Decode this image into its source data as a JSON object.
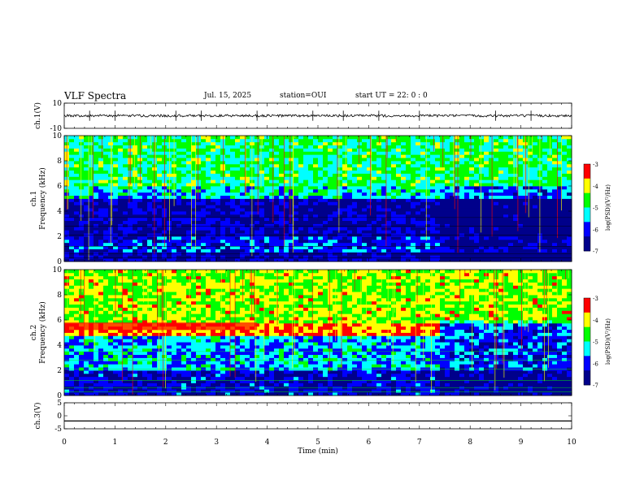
{
  "header": {
    "title": "VLF Spectra",
    "date": "Jul. 15, 2025",
    "station": "station=OUI",
    "start": "start UT =  22: 0  : 0"
  },
  "chart_data": [
    {
      "type": "line",
      "panel": "ch1-waveform",
      "ylabel": "ch.1(V)",
      "ylim": [
        -10,
        10
      ],
      "ytick_labels": [
        "10",
        "-10"
      ],
      "xlim": [
        0,
        10
      ],
      "baseline": 0,
      "noise_amplitude": 1,
      "spikes_min": [
        0.5,
        1.0,
        2.2,
        2.7,
        3.8,
        4.9,
        5.5,
        6.2,
        7.0,
        8.5,
        9.2
      ]
    },
    {
      "type": "heatmap",
      "panel": "ch1-spectrogram",
      "ylabel": "ch.1\nFrequency (kHz)",
      "ylim": [
        0,
        10
      ],
      "ytick_labels": [
        "0",
        "2",
        "4",
        "6",
        "8",
        "10"
      ],
      "xlim": [
        0,
        10
      ],
      "bands_khz": [
        {
          "from": 0,
          "to": 0.8,
          "level": -6.5
        },
        {
          "from": 0.8,
          "to": 2.0,
          "level": -6.0
        },
        {
          "from": 2.0,
          "to": 5.0,
          "level": -6.5
        },
        {
          "from": 5.0,
          "to": 6.0,
          "level": -5.3
        },
        {
          "from": 6.0,
          "to": 10.0,
          "level": -4.9
        }
      ],
      "darker_after_min": 7.4,
      "colorbar": {
        "label": "log(PSD)(V²/Hz)",
        "ticks": [
          "-3",
          "-4",
          "-5",
          "-6",
          "-7"
        ]
      }
    },
    {
      "type": "heatmap",
      "panel": "ch2-spectrogram",
      "ylabel": "ch.2\nFrequency (kHz)",
      "ylim": [
        0,
        10
      ],
      "ytick_labels": [
        "0",
        "2",
        "4",
        "6",
        "8",
        "10"
      ],
      "xlim": [
        0,
        10
      ],
      "bands_khz": [
        {
          "from": 0,
          "to": 2.0,
          "level": -6.3
        },
        {
          "from": 2.0,
          "to": 4.8,
          "level": -5.5
        },
        {
          "from": 4.8,
          "to": 5.8,
          "level": -3.6
        },
        {
          "from": 5.8,
          "to": 10.0,
          "level": -4.3
        }
      ],
      "strong_band": {
        "from_khz": 4.8,
        "to_khz": 5.8,
        "until_min": 7.4
      },
      "darker_after_min": 7.4,
      "colorbar": {
        "label": "log(PSD)(V²/Hz)",
        "ticks": [
          "-3",
          "-4",
          "-5",
          "-6",
          "-7"
        ]
      }
    },
    {
      "type": "line",
      "panel": "ch3-waveform",
      "ylabel": "ch.3(V)",
      "ylim": [
        -5,
        5
      ],
      "ytick_labels": [
        "5",
        "0",
        "-5"
      ],
      "xlim": [
        0,
        10
      ],
      "value": -2
    }
  ],
  "xaxis": {
    "label": "Time (min)",
    "tick_labels": [
      "0",
      "1",
      "2",
      "3",
      "4",
      "5",
      "6",
      "7",
      "8",
      "9",
      "10"
    ]
  },
  "colors": {
    "c1": "#00008b",
    "c2": "#0000ff",
    "c3": "#00ffff",
    "c4": "#00ff00",
    "c5": "#ffff00",
    "c6": "#ff0000"
  }
}
